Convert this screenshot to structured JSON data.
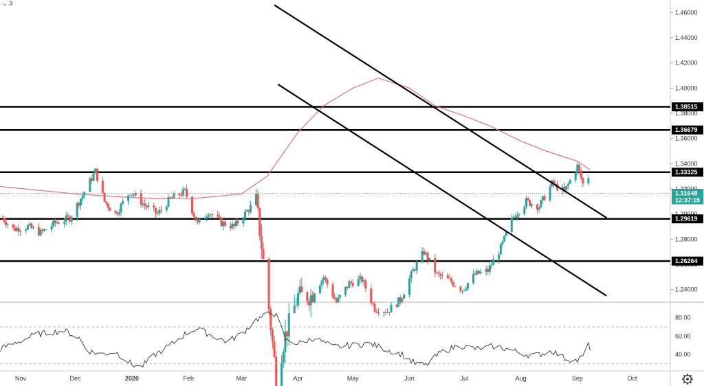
{
  "header": {
    "indicator_count": "3"
  },
  "chart_data": [
    {
      "type": "candlestick",
      "title": "",
      "ylim": [
        1.23,
        1.47
      ],
      "y_ticks": [
        1.24,
        1.26,
        1.28,
        1.3,
        1.32,
        1.34,
        1.36,
        1.38,
        1.4,
        1.42,
        1.44,
        1.46
      ],
      "y_tick_labels": [
        "1.24000",
        "1.26000",
        "1.28000",
        "1.30000",
        "1.32000",
        "1.34000",
        "1.36000",
        "1.38000",
        "1.40000",
        "1.42000",
        "1.44000",
        "1.46000"
      ],
      "x_labels": [
        "Nov",
        "Dec",
        "2020",
        "Feb",
        "Mar",
        "Apr",
        "May",
        "Jun",
        "Jul",
        "Aug",
        "Sep",
        "Oct"
      ],
      "x_label_dates": [
        "2019-11-01",
        "2019-12-01",
        "2020-01-01",
        "2020-02-01",
        "2020-03-01",
        "2020-04-01",
        "2020-05-01",
        "2020-06-01",
        "2020-07-01",
        "2020-08-01",
        "2020-09-01",
        "2020-10-01"
      ],
      "up_color": "#26a69a",
      "down_color": "#ef5350",
      "close_path": [
        [
          "2019-10-22",
          1.297
        ],
        [
          "2019-10-28",
          1.288
        ],
        [
          "2019-11-05",
          1.29
        ],
        [
          "2019-11-12",
          1.285
        ],
        [
          "2019-11-20",
          1.293
        ],
        [
          "2019-11-28",
          1.297
        ],
        [
          "2019-12-05",
          1.315
        ],
        [
          "2019-12-12",
          1.334
        ],
        [
          "2019-12-17",
          1.31
        ],
        [
          "2019-12-23",
          1.3
        ],
        [
          "2019-12-31",
          1.318
        ],
        [
          "2020-01-08",
          1.307
        ],
        [
          "2020-01-15",
          1.3
        ],
        [
          "2020-01-22",
          1.312
        ],
        [
          "2020-01-30",
          1.318
        ],
        [
          "2020-02-06",
          1.292
        ],
        [
          "2020-02-12",
          1.302
        ],
        [
          "2020-02-19",
          1.293
        ],
        [
          "2020-02-26",
          1.29
        ],
        [
          "2020-03-05",
          1.304
        ],
        [
          "2020-03-09",
          1.31
        ],
        [
          "2020-03-12",
          1.275
        ],
        [
          "2020-03-16",
          1.225
        ],
        [
          "2020-03-20",
          1.17
        ],
        [
          "2020-03-25",
          1.204
        ],
        [
          "2020-04-01",
          1.235
        ],
        [
          "2020-04-08",
          1.235
        ],
        [
          "2020-04-15",
          1.25
        ],
        [
          "2020-04-22",
          1.23
        ],
        [
          "2020-04-29",
          1.245
        ],
        [
          "2020-05-06",
          1.248
        ],
        [
          "2020-05-13",
          1.225
        ],
        [
          "2020-05-20",
          1.223
        ],
        [
          "2020-05-27",
          1.232
        ],
        [
          "2020-06-03",
          1.255
        ],
        [
          "2020-06-09",
          1.27
        ],
        [
          "2020-06-16",
          1.252
        ],
        [
          "2020-06-23",
          1.247
        ],
        [
          "2020-06-30",
          1.24
        ],
        [
          "2020-07-07",
          1.252
        ],
        [
          "2020-07-14",
          1.255
        ],
        [
          "2020-07-21",
          1.273
        ],
        [
          "2020-07-28",
          1.298
        ],
        [
          "2020-08-04",
          1.31
        ],
        [
          "2020-08-11",
          1.306
        ],
        [
          "2020-08-18",
          1.324
        ],
        [
          "2020-08-25",
          1.318
        ],
        [
          "2020-09-01",
          1.338
        ],
        [
          "2020-09-04",
          1.324
        ],
        [
          "2020-09-07",
          1.33
        ]
      ],
      "ma_color": "#e57373",
      "ma_path": [
        [
          "2019-10-20",
          1.322
        ],
        [
          "2019-12-01",
          1.316
        ],
        [
          "2020-01-01",
          1.313
        ],
        [
          "2020-02-01",
          1.312
        ],
        [
          "2020-03-01",
          1.316
        ],
        [
          "2020-03-15",
          1.33
        ],
        [
          "2020-04-01",
          1.365
        ],
        [
          "2020-04-15",
          1.386
        ],
        [
          "2020-05-01",
          1.4
        ],
        [
          "2020-05-15",
          1.408
        ],
        [
          "2020-06-01",
          1.4
        ],
        [
          "2020-06-15",
          1.386
        ],
        [
          "2020-07-01",
          1.378
        ],
        [
          "2020-07-15",
          1.37
        ],
        [
          "2020-08-01",
          1.358
        ],
        [
          "2020-08-15",
          1.35
        ],
        [
          "2020-09-01",
          1.342
        ],
        [
          "2020-09-08",
          1.335
        ]
      ],
      "horizontal_levels": [
        {
          "value": 1.38515,
          "label": "1.38515"
        },
        {
          "value": 1.36679,
          "label": "1.36679"
        },
        {
          "value": 1.33325,
          "label": "1.33325"
        },
        {
          "value": 1.29619,
          "label": "1.29619"
        },
        {
          "value": 1.26264,
          "label": "1.26264"
        }
      ],
      "trendlines": [
        {
          "from": [
            "2020-03-19",
            1.466
          ],
          "to": [
            "2020-09-17",
            1.297
          ]
        },
        {
          "from": [
            "2020-03-21",
            1.403
          ],
          "to": [
            "2020-09-17",
            1.235
          ]
        }
      ],
      "current_price": {
        "value": 1.31648,
        "label": "1.31648",
        "color": "#26a69a"
      },
      "countdown": {
        "value": 1.311,
        "label": "12:37:15",
        "color": "#26a69a"
      }
    },
    {
      "type": "line",
      "title": "",
      "ylim": [
        22,
        97
      ],
      "y_ticks": [
        40,
        60,
        80
      ],
      "y_tick_labels": [
        "40.00",
        "60.00",
        "80.00"
      ],
      "reference_lines": [
        70,
        30
      ],
      "line_color": "#333333",
      "path": [
        [
          "2019-10-20",
          45
        ],
        [
          "2019-11-01",
          55
        ],
        [
          "2019-11-10",
          62
        ],
        [
          "2019-11-25",
          66
        ],
        [
          "2019-12-03",
          58
        ],
        [
          "2019-12-08",
          44
        ],
        [
          "2019-12-15",
          40
        ],
        [
          "2019-12-23",
          43
        ],
        [
          "2020-01-01",
          29
        ],
        [
          "2020-01-06",
          26
        ],
        [
          "2020-01-14",
          40
        ],
        [
          "2020-01-22",
          50
        ],
        [
          "2020-01-30",
          62
        ],
        [
          "2020-02-05",
          68
        ],
        [
          "2020-02-15",
          60
        ],
        [
          "2020-02-22",
          54
        ],
        [
          "2020-03-01",
          62
        ],
        [
          "2020-03-09",
          78
        ],
        [
          "2020-03-14",
          82
        ],
        [
          "2020-03-18",
          86
        ],
        [
          "2020-03-21",
          80
        ],
        [
          "2020-03-25",
          56
        ],
        [
          "2020-04-01",
          52
        ],
        [
          "2020-04-10",
          58
        ],
        [
          "2020-04-20",
          48
        ],
        [
          "2020-05-01",
          50
        ],
        [
          "2020-05-10",
          52
        ],
        [
          "2020-05-20",
          45
        ],
        [
          "2020-05-28",
          40
        ],
        [
          "2020-06-04",
          30
        ],
        [
          "2020-06-10",
          28
        ],
        [
          "2020-06-18",
          42
        ],
        [
          "2020-06-28",
          50
        ],
        [
          "2020-07-08",
          46
        ],
        [
          "2020-07-18",
          49
        ],
        [
          "2020-07-28",
          44
        ],
        [
          "2020-08-08",
          38
        ],
        [
          "2020-08-18",
          44
        ],
        [
          "2020-08-25",
          36
        ],
        [
          "2020-09-01",
          33
        ],
        [
          "2020-09-04",
          38
        ],
        [
          "2020-09-06",
          52
        ],
        [
          "2020-09-08",
          47
        ]
      ]
    }
  ]
}
